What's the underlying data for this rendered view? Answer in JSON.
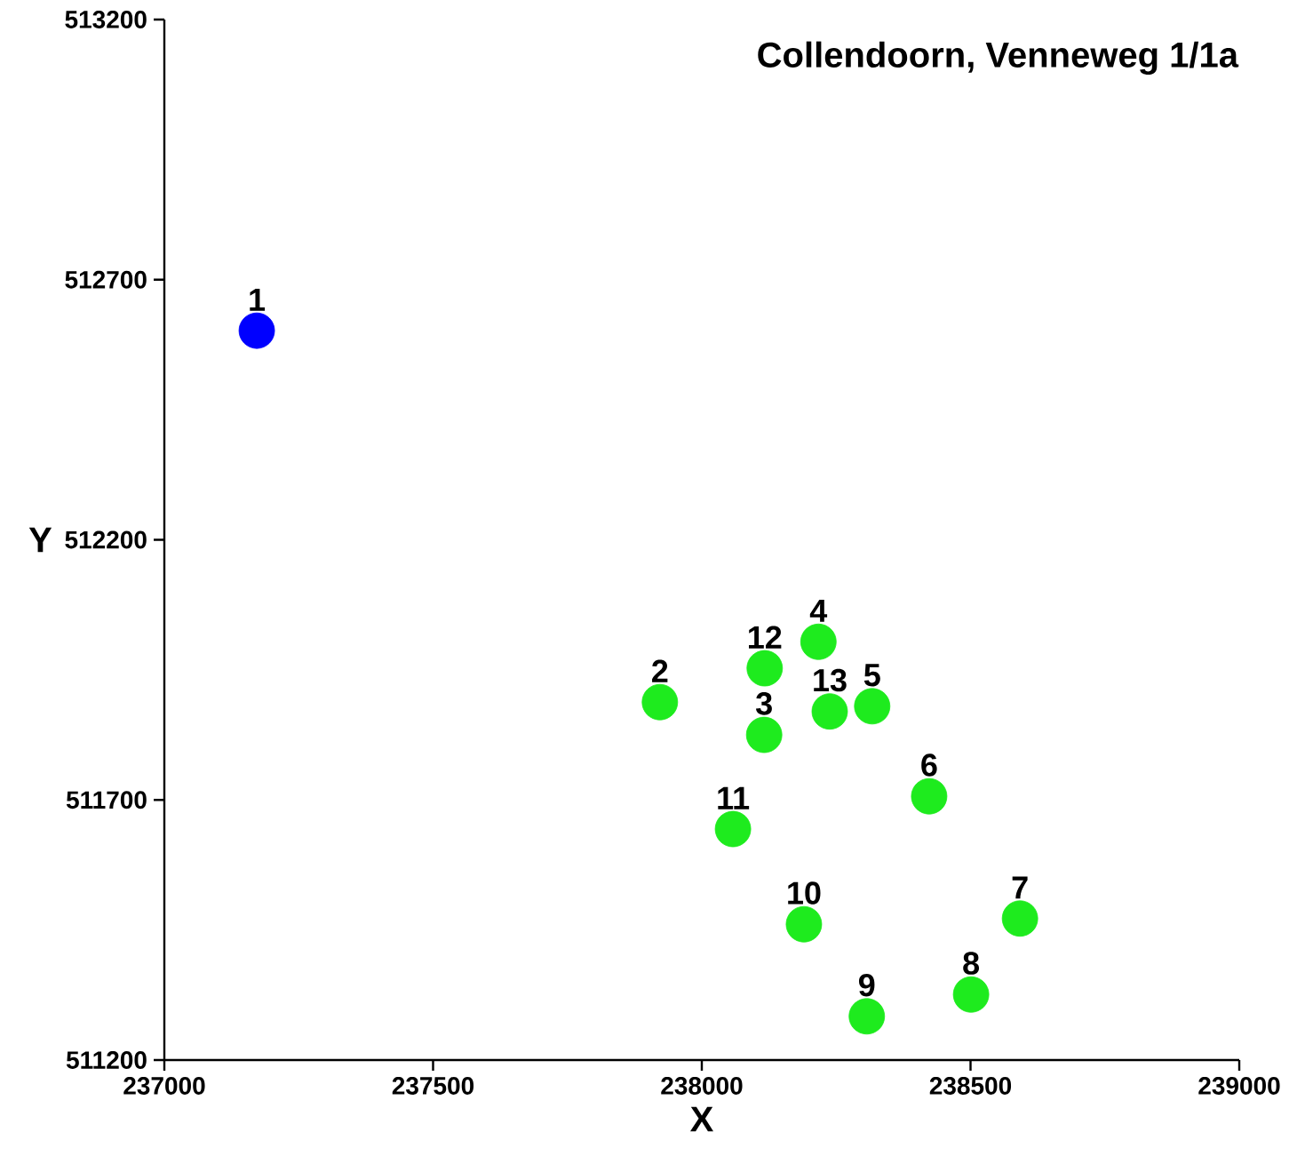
{
  "chart_data": {
    "type": "scatter",
    "title": "Collendoorn, Venneweg 1/1a",
    "xlabel": "X",
    "ylabel": "Y",
    "xlim": [
      237000,
      239000
    ],
    "xticks": [
      237000,
      237500,
      238000,
      238500,
      239000
    ],
    "ylim": [
      511200,
      513200
    ],
    "yticks": [
      511200,
      511700,
      512200,
      512700,
      513200
    ],
    "series": [
      {
        "color": "#0000ff",
        "x": [
          237172
        ],
        "values": [
          512602
        ]
      },
      {
        "color": "#1eeb1e",
        "x": [
          237922,
          238116,
          238217,
          238317,
          238423,
          238592,
          238501,
          238307,
          238190,
          238058,
          238117,
          238238
        ],
        "values": [
          511888,
          511825,
          512004,
          511880,
          511707,
          511472,
          511326,
          511284,
          511461,
          511644,
          511953,
          511870
        ]
      }
    ],
    "annotations": [
      {
        "text": "1",
        "x": 237172,
        "y": 512602
      },
      {
        "text": "2",
        "x": 237922,
        "y": 511888
      },
      {
        "text": "3",
        "x": 238116,
        "y": 511825
      },
      {
        "text": "4",
        "x": 238217,
        "y": 512004
      },
      {
        "text": "5",
        "x": 238317,
        "y": 511880
      },
      {
        "text": "6",
        "x": 238423,
        "y": 511707
      },
      {
        "text": "7",
        "x": 238592,
        "y": 511472
      },
      {
        "text": "8",
        "x": 238501,
        "y": 511326
      },
      {
        "text": "9",
        "x": 238307,
        "y": 511284
      },
      {
        "text": "10",
        "x": 238190,
        "y": 511461
      },
      {
        "text": "11",
        "x": 238058,
        "y": 511644
      },
      {
        "text": "12",
        "x": 238117,
        "y": 511953
      },
      {
        "text": "13",
        "x": 238238,
        "y": 511870
      }
    ]
  }
}
